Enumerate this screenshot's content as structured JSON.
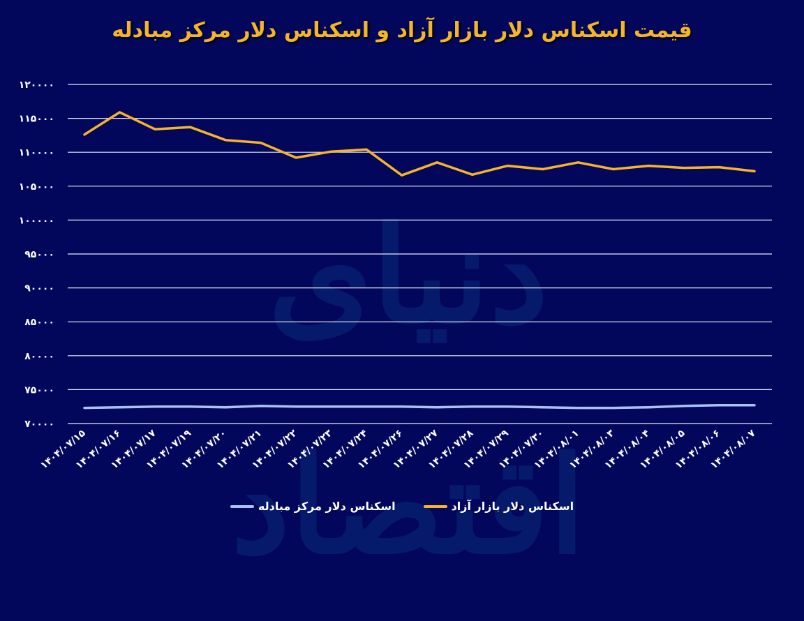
{
  "title": "قیمت اسکناس دلار بازار آزاد و اسکناس دلار مرکز مبادله",
  "watermark": "دنیای اقتصاد",
  "colors": {
    "background": "#03075c",
    "free_market": "#f4b52a",
    "exchange_center": "#a9c1f5",
    "grid": "#e8ecf5",
    "title": "#f4b52a"
  },
  "legend": {
    "free_market": "اسکناس دلار بازار آزاد",
    "exchange_center": "اسکناس دلار مرکز مبادله"
  },
  "chart_data": {
    "type": "line",
    "title": "قیمت اسکناس دلار بازار آزاد و اسکناس دلار مرکز مبادله",
    "xlabel": "",
    "ylabel": "",
    "ylim": [
      70000,
      120000
    ],
    "yticks": [
      70000,
      75000,
      80000,
      85000,
      90000,
      95000,
      100000,
      105000,
      110000,
      115000,
      120000
    ],
    "ytick_labels": [
      "۷۰۰۰۰",
      "۷۵۰۰۰",
      "۸۰۰۰۰",
      "۸۵۰۰۰",
      "۹۰۰۰۰",
      "۹۵۰۰۰",
      "۱۰۰۰۰۰",
      "۱۰۵۰۰۰",
      "۱۱۰۰۰۰",
      "۱۱۵۰۰۰",
      "۱۲۰۰۰۰"
    ],
    "grid": true,
    "legend_position": "bottom",
    "categories": [
      "۱۴۰۴/۰۷/۱۵",
      "۱۴۰۴/۰۷/۱۶",
      "۱۴۰۴/۰۷/۱۷",
      "۱۴۰۴/۰۷/۱۹",
      "۱۴۰۴/۰۷/۲۰",
      "۱۴۰۴/۰۷/۲۱",
      "۱۴۰۴/۰۷/۲۲",
      "۱۴۰۴/۰۷/۲۳",
      "۱۴۰۴/۰۷/۲۴",
      "۱۴۰۴/۰۷/۲۶",
      "۱۴۰۴/۰۷/۲۷",
      "۱۴۰۴/۰۷/۲۸",
      "۱۴۰۴/۰۷/۲۹",
      "۱۴۰۴/۰۷/۳۰",
      "۱۴۰۴/۰۸/۰۱",
      "۱۴۰۴/۰۸/۰۳",
      "۱۴۰۴/۰۸/۰۴",
      "۱۴۰۴/۰۸/۰۵",
      "۱۴۰۴/۰۸/۰۶",
      "۱۴۰۴/۰۸/۰۷"
    ],
    "series": [
      {
        "name": "اسکناس دلار بازار آزاد",
        "color": "#f4b52a",
        "values": [
          112600,
          115900,
          113400,
          113700,
          111800,
          111400,
          109200,
          110100,
          110400,
          106600,
          108500,
          106700,
          108000,
          107500,
          108500,
          107500,
          108000,
          107700,
          107800,
          107200
        ]
      },
      {
        "name": "اسکناس دلار مرکز مبادله",
        "color": "#a9c1f5",
        "values": [
          72300,
          72400,
          72500,
          72500,
          72400,
          72600,
          72500,
          72500,
          72500,
          72500,
          72400,
          72500,
          72500,
          72400,
          72300,
          72300,
          72400,
          72600,
          72700,
          72700
        ]
      }
    ]
  }
}
